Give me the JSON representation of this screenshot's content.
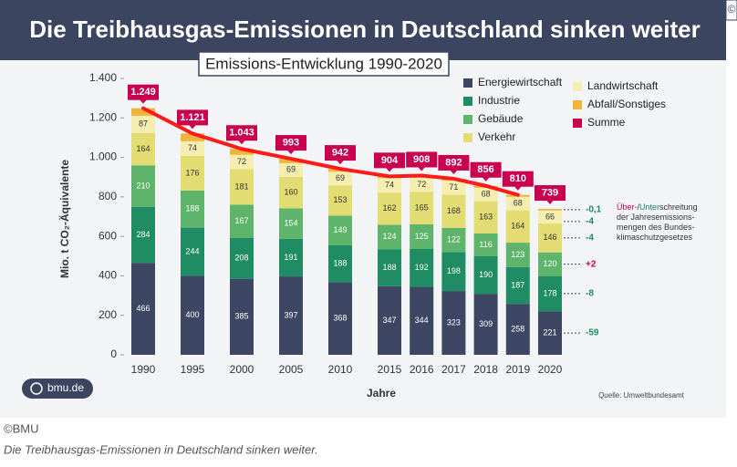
{
  "chart_data": {
    "type": "bar",
    "stacked": true,
    "title": "Die Treibhausgas-Emissionen in Deutschland sinken weiter",
    "subtitle": "Emissions-Entwicklung 1990-2020",
    "categories": [
      "1990",
      "1995",
      "2000",
      "2005",
      "2010",
      "2015",
      "2016",
      "2017",
      "2018",
      "2019",
      "2020"
    ],
    "series": [
      {
        "name": "Energiewirtschaft",
        "color": "#3d4663",
        "label_color": "#ffffff",
        "values": [
          466,
          400,
          385,
          397,
          368,
          347,
          344,
          323,
          309,
          258,
          221
        ],
        "deviation": "-59",
        "deviation_color": "#1e8a63"
      },
      {
        "name": "Industrie",
        "color": "#1f8c64",
        "label_color": "#ffffff",
        "values": [
          284,
          244,
          208,
          191,
          188,
          188,
          192,
          198,
          190,
          187,
          178
        ],
        "deviation": "-8",
        "deviation_color": "#1e8a63"
      },
      {
        "name": "Gebäude",
        "color": "#5db46a",
        "label_color": "#ffffff",
        "values": [
          210,
          188,
          167,
          154,
          149,
          124,
          125,
          122,
          116,
          123,
          120
        ],
        "deviation": "+2",
        "deviation_color": "#c8004f"
      },
      {
        "name": "Verkehr",
        "color": "#e2dc72",
        "label_color": "#333333",
        "values": [
          164,
          176,
          181,
          160,
          153,
          162,
          165,
          168,
          163,
          164,
          146
        ],
        "deviation": "-4",
        "deviation_color": "#1e8a63"
      },
      {
        "name": "Landwirtschaft",
        "color": "#f5eeb0",
        "label_color": "#333333",
        "values": [
          87,
          74,
          72,
          69,
          69,
          74,
          72,
          71,
          68,
          68,
          66
        ],
        "deviation": "-4",
        "deviation_color": "#1e8a63"
      },
      {
        "name": "Abfall/Sonstiges",
        "color": "#f2b53c",
        "values": [
          38,
          39,
          30,
          22,
          15,
          9,
          10,
          10,
          10,
          10,
          8
        ],
        "deviation": "-0,1",
        "deviation_color": "#1e8a63"
      }
    ],
    "sum": {
      "name": "Summe",
      "color": "#c8004f",
      "values": [
        1249,
        1121,
        1043,
        993,
        942,
        904,
        908,
        892,
        856,
        810,
        739
      ],
      "value_labels": [
        "1.249",
        "1.121",
        "1.043",
        "993",
        "942",
        "904",
        "908",
        "892",
        "856",
        "810",
        "739"
      ]
    },
    "trend_color": "#ff1a1a",
    "ylim": [
      0,
      1400
    ],
    "yticks": [
      0,
      200,
      400,
      600,
      800,
      {
        "value": 1000,
        "label": "1.000"
      },
      {
        "value": 1200,
        "label": "1.200"
      },
      {
        "value": 1400,
        "label": "1.400"
      }
    ],
    "ylabel": "Mio. t CO₂-Äquivalente",
    "xlabel": "Jahre",
    "source": "Quelle: Umweltbundesamt",
    "logo": "bmu.de",
    "note": [
      "Über-",
      "/",
      "Unter",
      "schreitung",
      "der Jahresemissions-",
      "mengen des Bundes-",
      "klimaschutzgesetzes"
    ]
  },
  "caption": {
    "corner_mark": "©",
    "credit": "©BMU",
    "text": "Die Treibhausgas-Emissionen in Deutschland sinken weiter."
  }
}
